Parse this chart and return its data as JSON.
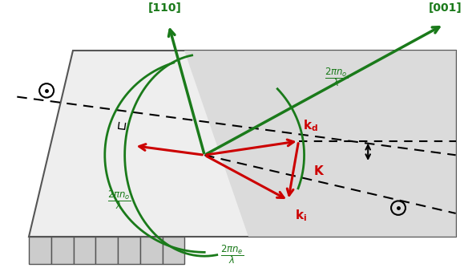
{
  "fig_width": 5.84,
  "fig_height": 3.39,
  "dpi": 100,
  "bg_color": "#ffffff",
  "green_color": "#1a7a1a",
  "red_color": "#cc0000",
  "black_color": "#000000"
}
